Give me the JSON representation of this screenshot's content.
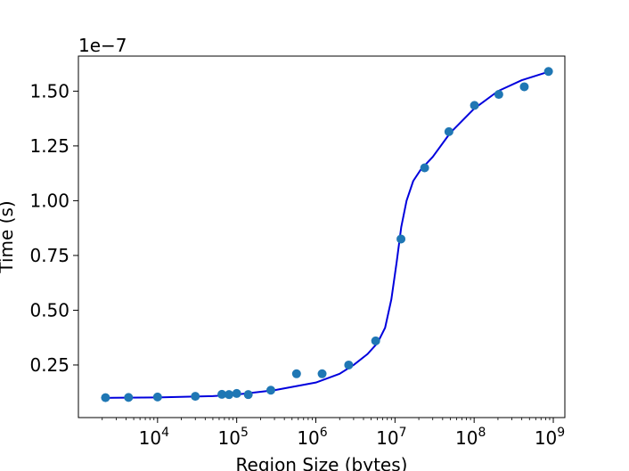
{
  "chart_data": {
    "type": "scatter",
    "xlabel": "Region Size (bytes)",
    "ylabel": "Time (s)",
    "y_offset_label": "1e−7",
    "x_scale": "log",
    "xlim": [
      1000,
      1400000000
    ],
    "ylim": [
      1e-09,
      1.66e-07
    ],
    "grid": false,
    "x_ticks": [
      {
        "value": 10000,
        "base": "10",
        "exp": "4"
      },
      {
        "value": 100000,
        "base": "10",
        "exp": "5"
      },
      {
        "value": 1000000,
        "base": "10",
        "exp": "6"
      },
      {
        "value": 10000000,
        "base": "10",
        "exp": "7"
      },
      {
        "value": 100000000,
        "base": "10",
        "exp": "8"
      },
      {
        "value": 1000000000,
        "base": "10",
        "exp": "9"
      }
    ],
    "y_ticks": [
      {
        "value": 2.5e-08,
        "label": "0.25"
      },
      {
        "value": 5e-08,
        "label": "0.50"
      },
      {
        "value": 7.5e-08,
        "label": "0.75"
      },
      {
        "value": 1e-07,
        "label": "1.00"
      },
      {
        "value": 1.25e-07,
        "label": "1.25"
      },
      {
        "value": 1.5e-07,
        "label": "1.50"
      }
    ],
    "series": [
      {
        "kind": "points",
        "color": "#1f77b4",
        "points": [
          {
            "x": 2200,
            "y": 1.01e-08
          },
          {
            "x": 4300,
            "y": 1.02e-08
          },
          {
            "x": 10000,
            "y": 1.04e-08
          },
          {
            "x": 30000,
            "y": 1.07e-08
          },
          {
            "x": 65000,
            "y": 1.16e-08
          },
          {
            "x": 80000,
            "y": 1.15e-08
          },
          {
            "x": 100000,
            "y": 1.2e-08
          },
          {
            "x": 140000,
            "y": 1.15e-08
          },
          {
            "x": 270000,
            "y": 1.35e-08
          },
          {
            "x": 570000,
            "y": 2.1e-08
          },
          {
            "x": 1200000,
            "y": 2.1e-08
          },
          {
            "x": 2600000,
            "y": 2.5e-08
          },
          {
            "x": 5700000,
            "y": 3.6e-08
          },
          {
            "x": 11900000,
            "y": 8.25e-08
          },
          {
            "x": 23700000,
            "y": 1.15e-07
          },
          {
            "x": 48000000,
            "y": 1.315e-07
          },
          {
            "x": 101000000,
            "y": 1.435e-07
          },
          {
            "x": 205000000,
            "y": 1.485e-07
          },
          {
            "x": 430000000,
            "y": 1.52e-07
          },
          {
            "x": 870000000,
            "y": 1.59e-07
          }
        ]
      },
      {
        "kind": "curve",
        "color": "#0000dd",
        "points": [
          {
            "x": 2200,
            "y": 1e-08
          },
          {
            "x": 10000,
            "y": 1.02e-08
          },
          {
            "x": 50000,
            "y": 1.08e-08
          },
          {
            "x": 100000,
            "y": 1.15e-08
          },
          {
            "x": 300000,
            "y": 1.35e-08
          },
          {
            "x": 1000000,
            "y": 1.7e-08
          },
          {
            "x": 2000000,
            "y": 2.1e-08
          },
          {
            "x": 3000000,
            "y": 2.5e-08
          },
          {
            "x": 4500000,
            "y": 3e-08
          },
          {
            "x": 6000000,
            "y": 3.5e-08
          },
          {
            "x": 7500000,
            "y": 4.2e-08
          },
          {
            "x": 9000000,
            "y": 5.5e-08
          },
          {
            "x": 10500000,
            "y": 7.2e-08
          },
          {
            "x": 12000000,
            "y": 8.8e-08
          },
          {
            "x": 14000000,
            "y": 1e-07
          },
          {
            "x": 17000000,
            "y": 1.09e-07
          },
          {
            "x": 21000000,
            "y": 1.14e-07
          },
          {
            "x": 30000000,
            "y": 1.2e-07
          },
          {
            "x": 50000000,
            "y": 1.31e-07
          },
          {
            "x": 100000000,
            "y": 1.42e-07
          },
          {
            "x": 200000000,
            "y": 1.5e-07
          },
          {
            "x": 400000000,
            "y": 1.55e-07
          },
          {
            "x": 900000000,
            "y": 1.59e-07
          }
        ]
      }
    ]
  }
}
